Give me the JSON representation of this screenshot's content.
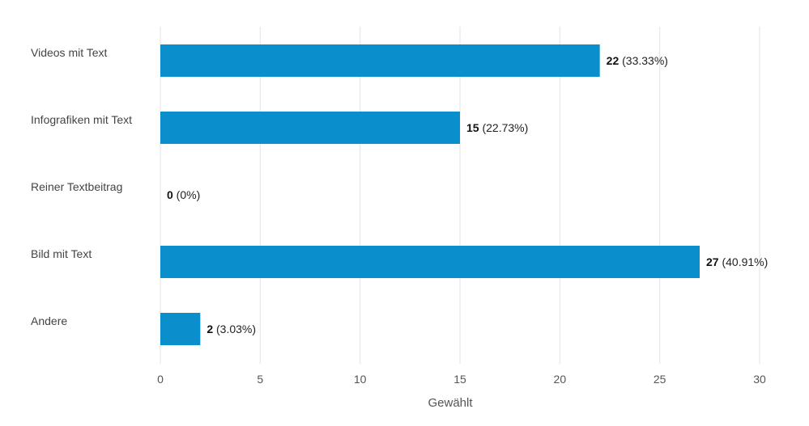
{
  "chart_data": {
    "type": "bar",
    "orientation": "horizontal",
    "categories": [
      "Videos mit Text",
      "Infografiken mit Text",
      "Reiner Textbeitrag",
      "Bild mit Text",
      "Andere"
    ],
    "values": [
      22,
      15,
      0,
      27,
      2
    ],
    "percent_labels": [
      "(33.33%)",
      "(22.73%)",
      "(0%)",
      "(40.91%)",
      "(3.03%)"
    ],
    "xlabel": "Gewählt",
    "ylabel": "",
    "xlim": [
      0,
      30
    ],
    "xticks": [
      0,
      5,
      10,
      15,
      20,
      25,
      30
    ],
    "grid": true,
    "bar_color": "#0a8fcc"
  }
}
